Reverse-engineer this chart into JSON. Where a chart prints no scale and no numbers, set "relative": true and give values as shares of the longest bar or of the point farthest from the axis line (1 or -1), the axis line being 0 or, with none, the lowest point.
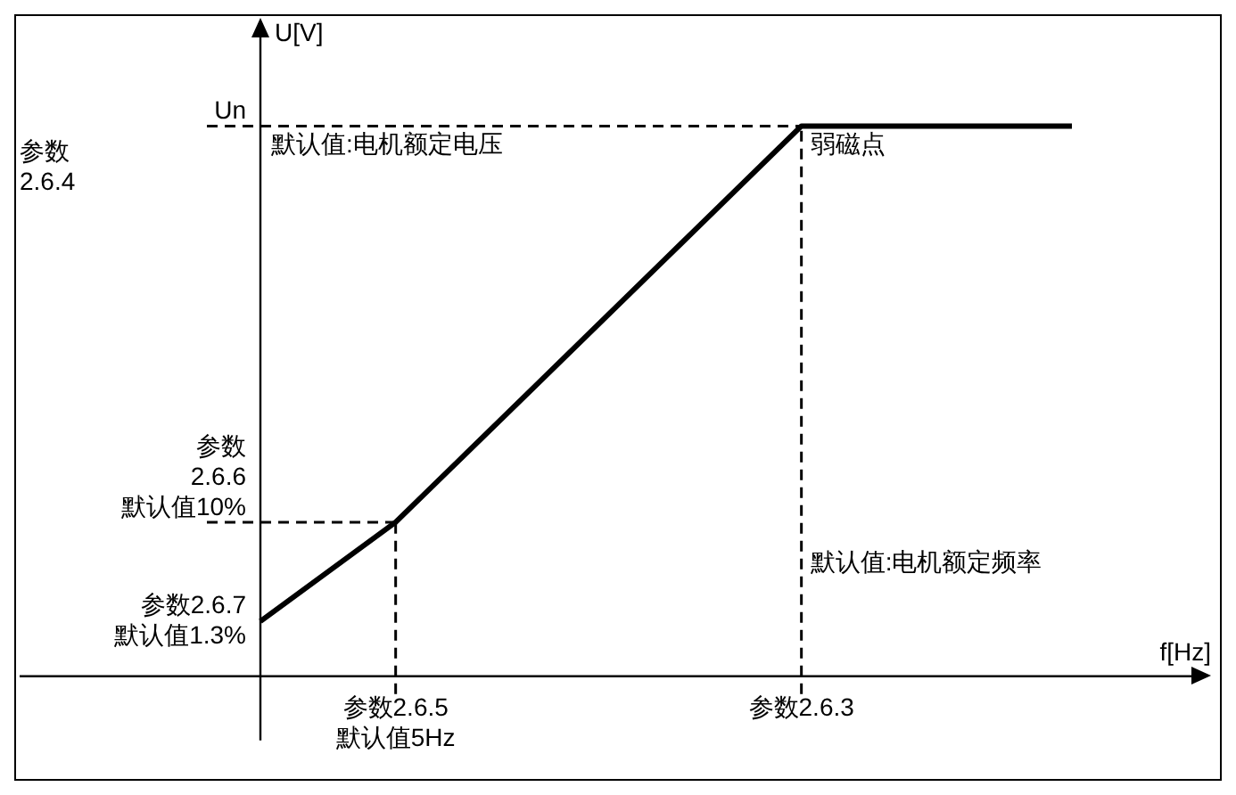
{
  "chart_data": {
    "type": "line",
    "relative": true,
    "xlabel": "f[Hz]",
    "ylabel": "U[V]",
    "legend": false,
    "marker": "none",
    "line_style": "solid",
    "categories": [
      null,
      "参数2.6.5\n默认值5Hz",
      null,
      null,
      "参数2.6.3",
      null,
      null
    ],
    "series": [
      {
        "color": "#000000",
        "values": [
          0.1,
          0.28,
          0.52,
          0.76,
          1,
          1,
          1
        ]
      }
    ],
    "ref_lines": [
      {
        "axis": "y",
        "value": 1,
        "label": "Un",
        "line_style": "dashed"
      },
      {
        "axis": "y",
        "value": 0.28,
        "label": "参数\n2.6.6\n默认值10%",
        "line_style": "dashed"
      },
      {
        "axis": "x",
        "value": "参数2.6.5\n默认值5Hz",
        "line_style": "dashed"
      },
      {
        "axis": "x",
        "value": "参数2.6.3",
        "line_style": "dashed"
      }
    ],
    "annotations": [
      "默认值:电机额定电压",
      "参数\n2.6.4",
      {
        "text": "弱磁点",
        "x": "参数2.6.3",
        "y": 1
      },
      {
        "text": "默认值:电机额定频率",
        "x": "参数2.6.3",
        "y": 0.24
      },
      "参数2.6.7\n默认值1.3%"
    ]
  }
}
